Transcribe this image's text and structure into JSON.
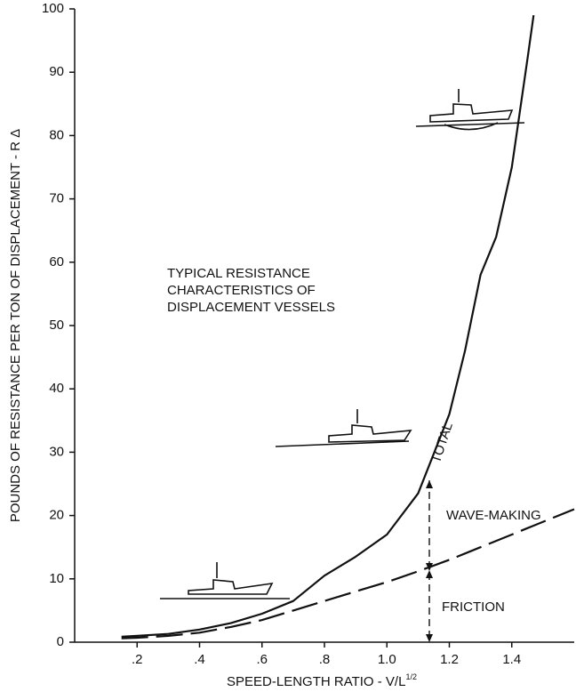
{
  "chart_data": {
    "type": "line",
    "x_label": "SPEED-LENGTH RATIO - V/L",
    "x_label_superscript": "1/2",
    "y_label": "POUNDS OF RESISTANCE PER TON OF DISPLACEMENT - R Δ",
    "annotation": [
      "TYPICAL RESISTANCE",
      "CHARACTERISTICS OF",
      "DISPLACEMENT VESSELS"
    ],
    "wave_label": "WAVE-MAKING",
    "x": [
      0.15,
      0.2,
      0.3,
      0.4,
      0.5,
      0.6,
      0.7,
      0.8,
      0.9,
      1.0,
      1.1,
      1.2,
      1.25,
      1.3,
      1.35,
      1.4,
      1.45,
      1.47,
      1.6
    ],
    "series": [
      {
        "name": "TOTAL",
        "color": "#111111",
        "dash": false,
        "values": [
          0.85,
          1,
          1.3,
          2,
          3,
          4.5,
          6.5,
          10.5,
          13.5,
          17,
          23.5,
          36,
          46,
          58,
          64,
          75,
          92,
          99,
          null
        ]
      },
      {
        "name": "FRICTION",
        "color": "#111111",
        "dash": true,
        "values": [
          0.6,
          0.7,
          1,
          1.5,
          2.4,
          3.5,
          5,
          6.5,
          8,
          9.5,
          11.2,
          13,
          14,
          15,
          16,
          17,
          18,
          18.4,
          21
        ]
      }
    ],
    "xlim": [
      0,
      1.6
    ],
    "ylim": [
      0,
      100
    ],
    "xticks": [
      {
        "value": 0.2,
        "label": ".2"
      },
      {
        "value": 0.4,
        "label": ".4"
      },
      {
        "value": 0.6,
        "label": ".6"
      },
      {
        "value": 0.8,
        "label": ".8"
      },
      {
        "value": 1.0,
        "label": "1.0"
      },
      {
        "value": 1.2,
        "label": "1.2"
      },
      {
        "value": 1.4,
        "label": "1.4"
      }
    ],
    "yticks": [
      0,
      10,
      20,
      30,
      40,
      50,
      60,
      70,
      80,
      90,
      100
    ],
    "grid": false
  }
}
